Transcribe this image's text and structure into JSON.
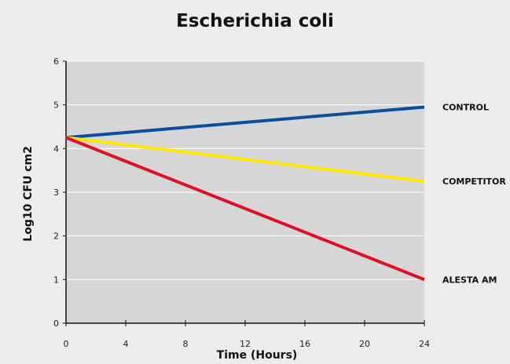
{
  "chart_data": {
    "type": "line",
    "title": "Escherichia coli",
    "xlabel": "Time (Hours)",
    "ylabel": "Log10 CFU cm2",
    "xlim": [
      0,
      24
    ],
    "ylim": [
      0,
      6
    ],
    "x_ticks": [
      0,
      4,
      8,
      12,
      16,
      20,
      24
    ],
    "y_ticks": [
      0,
      1,
      2,
      3,
      4,
      5,
      6
    ],
    "grid": true,
    "legend": "right-of-line-ends",
    "plot_background": "#d6d6d7",
    "series": [
      {
        "name": "CONTROL",
        "color": "#0b4f9c",
        "x": [
          0,
          24
        ],
        "y": [
          4.25,
          4.95
        ]
      },
      {
        "name": "COMPETITOR",
        "color": "#ffe600",
        "x": [
          0,
          24
        ],
        "y": [
          4.25,
          3.25
        ]
      },
      {
        "name": "ALESTA AM",
        "color": "#e00f23",
        "x": [
          0,
          24
        ],
        "y": [
          4.25,
          1.0
        ]
      }
    ]
  }
}
